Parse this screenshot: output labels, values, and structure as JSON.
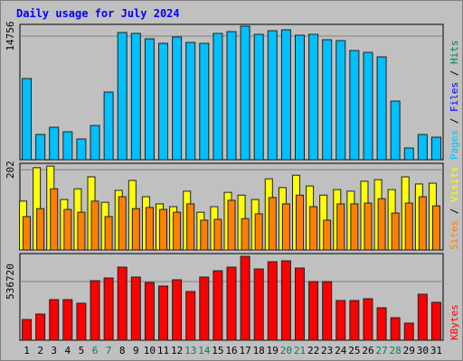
{
  "chart_data": [
    {
      "type": "bar",
      "title": "Daily usage for July 2024",
      "categories": [
        "1",
        "2",
        "3",
        "4",
        "5",
        "6",
        "7",
        "8",
        "9",
        "10",
        "11",
        "12",
        "13",
        "14",
        "15",
        "16",
        "17",
        "18",
        "19",
        "20",
        "21",
        "22",
        "23",
        "24",
        "25",
        "26",
        "27",
        "28",
        "29",
        "30",
        "31"
      ],
      "category_colors": [
        "#000000",
        "#000000",
        "#000000",
        "#000000",
        "#000000",
        "#00805c",
        "#00805c",
        "#000000",
        "#000000",
        "#000000",
        "#000000",
        "#000000",
        "#00805c",
        "#00805c",
        "#000000",
        "#000000",
        "#000000",
        "#000000",
        "#000000",
        "#00805c",
        "#00805c",
        "#000000",
        "#000000",
        "#000000",
        "#000000",
        "#000000",
        "#00805c",
        "#00805c",
        "#000000",
        "#000000",
        "#000000"
      ],
      "series": [
        {
          "name": "Pages",
          "color": "#00c0ff",
          "values": [
            9693,
            3016,
            3877,
            3339,
            2477,
            4093,
            8078,
            15186,
            15078,
            14432,
            13893,
            14648,
            14001,
            13893,
            15078,
            15293,
            15940,
            14971,
            15401,
            15509,
            14863,
            14971,
            14324,
            14217,
            13032,
            12817,
            12278,
            7001,
            1400,
            3016,
            2693
          ]
        }
      ],
      "other_legend": [
        {
          "name": "Files",
          "color": "#0000ff"
        },
        {
          "name": "Hits",
          "color": "#00805c"
        }
      ],
      "ylim": [
        0,
        16156
      ],
      "yticks": [
        14756
      ]
    },
    {
      "type": "bar",
      "series": [
        {
          "name": "Visits",
          "color": "#ffff00",
          "values": [
            123,
            207,
            211,
            127,
            154,
            184,
            120,
            150,
            175,
            134,
            116,
            109,
            148,
            95,
            109,
            145,
            138,
            127,
            179,
            157,
            188,
            161,
            138,
            152,
            148,
            173,
            177,
            152,
            184,
            166,
            168
          ]
        },
        {
          "name": "Sites",
          "color": "#ff8000",
          "values": [
            84,
            104,
            154,
            102,
            95,
            123,
            84,
            134,
            104,
            107,
            102,
            95,
            116,
            75,
            77,
            125,
            79,
            91,
            132,
            116,
            138,
            109,
            75,
            116,
            116,
            118,
            129,
            93,
            118,
            134,
            111
          ]
        }
      ],
      "ylim": [
        0,
        218
      ],
      "yticks": [
        202
      ]
    },
    {
      "type": "bar",
      "series": [
        {
          "name": "KBytes",
          "color": "#ff0000",
          "values": [
            189911,
            239453,
            371565,
            371565,
            338537,
            544962,
            569733,
            668817,
            577990,
            528448,
            495420,
            553219,
            445878,
            577990,
            635789,
            668817,
            767901,
            652303,
            718359,
            726616,
            660560,
            536705,
            536705,
            363308,
            363308,
            379822,
            297252,
            206425,
            156883,
            421107,
            346794
          ]
        }
      ],
      "ylim": [
        0,
        792700
      ],
      "yticks": [
        536720
      ]
    }
  ]
}
